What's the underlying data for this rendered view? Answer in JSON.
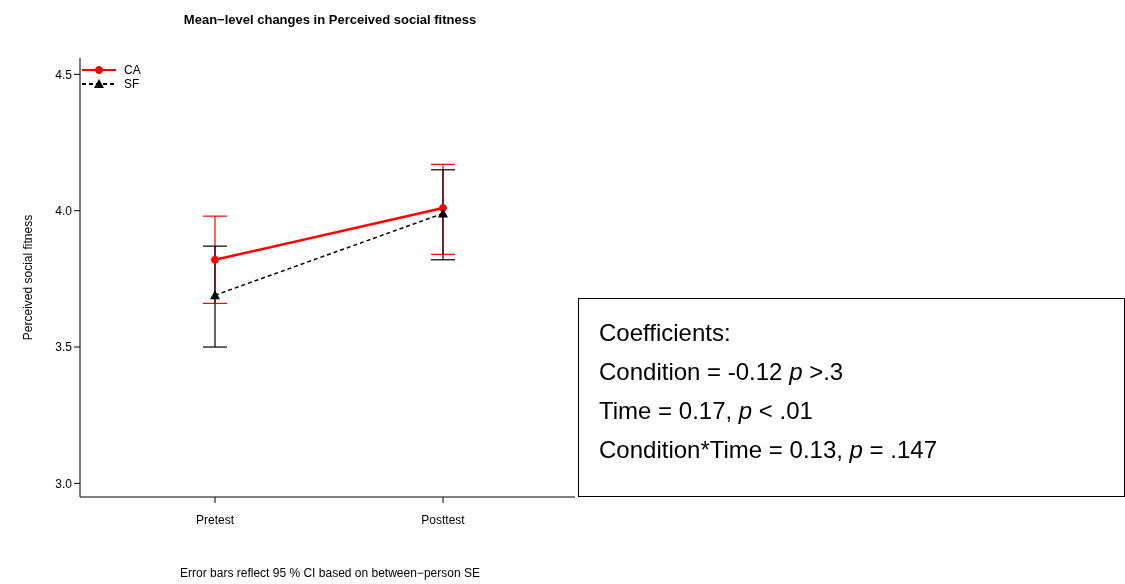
{
  "chart_data": {
    "type": "line",
    "title": "Mean−level changes in Perceived social fitness",
    "ylabel": "Perceived social fitness",
    "categories": [
      "Pretest",
      "Posttest"
    ],
    "series": [
      {
        "name": "CA",
        "color": "#ff0000",
        "values": [
          3.82,
          4.01
        ],
        "errors": [
          [
            3.66,
            3.98
          ],
          [
            3.84,
            4.17
          ]
        ],
        "marker": "circle",
        "line_style": "solid"
      },
      {
        "name": "SF",
        "color": "#000000",
        "values": [
          3.69,
          3.99
        ],
        "errors": [
          [
            3.5,
            3.87
          ],
          [
            3.82,
            4.15
          ]
        ],
        "marker": "triangle",
        "line_style": "dashed"
      }
    ],
    "ylim": [
      2.95,
      4.56
    ],
    "yticks": [
      {
        "value": 3,
        "label": "3.0"
      },
      3.5,
      {
        "value": 4,
        "label": "4.0"
      },
      4.5
    ],
    "legend": "top left",
    "grid": false,
    "annotations": [
      "Coefficients:",
      "Condition =  -0.12 p >.3",
      "Time = 0.17, p < .01",
      "Condition*Time = 0.13, p = .147",
      "Error bars reflect 95 % CI based on between−person SE"
    ]
  }
}
